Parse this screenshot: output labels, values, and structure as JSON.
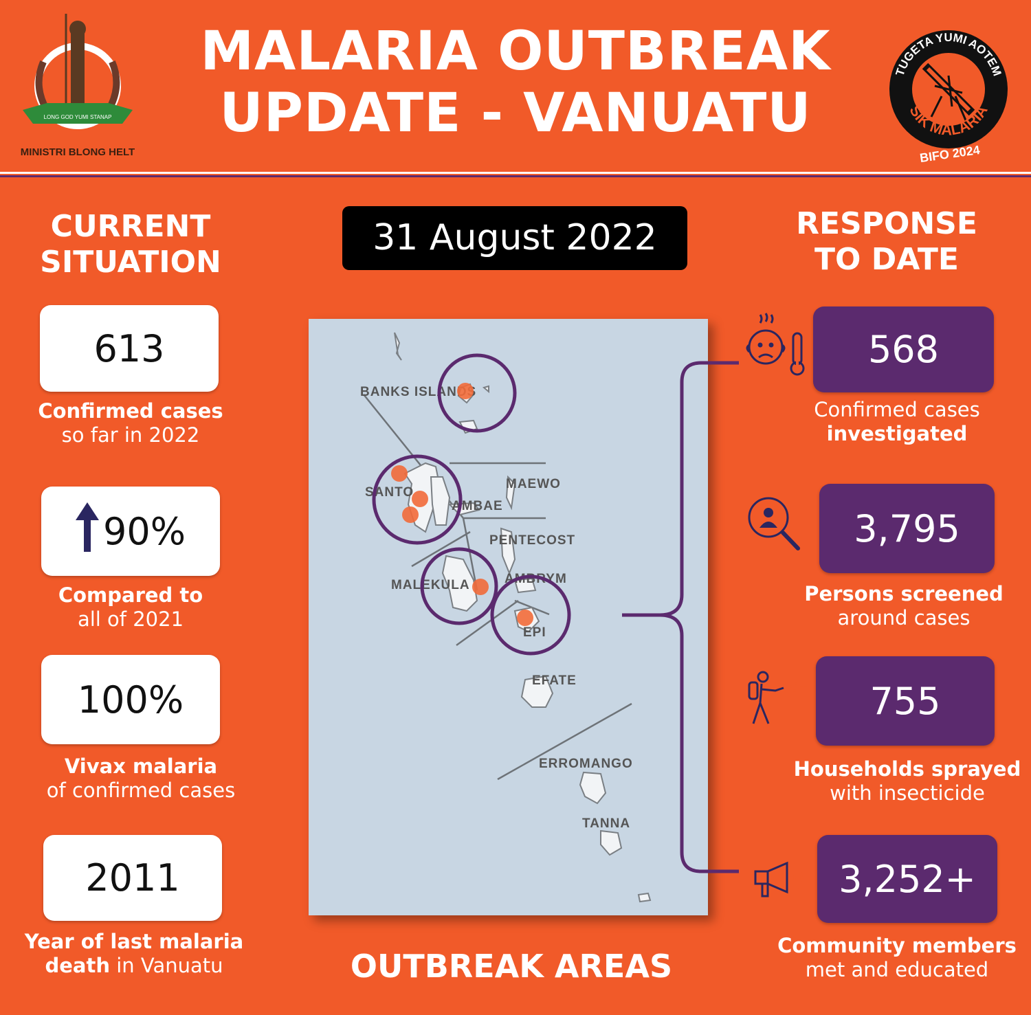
{
  "header": {
    "title_line1": "MALARIA OUTBREAK",
    "title_line2": "UPDATE - VANUATU",
    "left_logo": {
      "motto": "LONG GOD YUMI STANAP",
      "org": "MINISTRI BLONG HELT"
    },
    "right_logo": {
      "top_text": "TUGETA YUMI AOTEM",
      "bottom_text": "SIK MALARIA",
      "year_text": "BIFO 2024"
    }
  },
  "date": "31 August 2022",
  "current_situation": {
    "heading_line1": "CURRENT",
    "heading_line2": "SITUATION",
    "stats": [
      {
        "value": "613",
        "bold": "Confirmed cases",
        "rest": "so far in 2022"
      },
      {
        "value": "90%",
        "bold": "Compared to",
        "rest": "all of 2021",
        "icon": "up-arrow-icon"
      },
      {
        "value": "100%",
        "bold": "Vivax malaria",
        "rest": "of confirmed cases"
      },
      {
        "value": "2011",
        "bold": "Year of last malaria",
        "bold2": "death",
        "rest": "in Vanuatu"
      }
    ]
  },
  "response": {
    "heading_line1": "RESPONSE",
    "heading_line2": "TO DATE",
    "stats": [
      {
        "value": "568",
        "line1": "Confirmed cases",
        "line2": "investigated",
        "icon": "sick-person-thermometer-icon"
      },
      {
        "value": "3,795",
        "line1": "Persons screened",
        "line2": "around cases",
        "icon": "person-search-icon"
      },
      {
        "value": "755",
        "line1": "Households sprayed",
        "line2": "with insecticide",
        "icon": "sprayer-person-icon"
      },
      {
        "value": "3,252+",
        "line1": "Community members",
        "line2": "met and educated",
        "icon": "megaphone-icon"
      }
    ]
  },
  "map": {
    "caption": "OUTBREAK AREAS",
    "labels": [
      "BANKS ISLANDS",
      "SANTO",
      "MAEWO",
      "AMBAE",
      "PENTECOST",
      "MALEKULA",
      "AMBRYM",
      "EPI",
      "EFATE",
      "ERROMANGO",
      "TANNA"
    ],
    "colors": {
      "outbreak_dot": "#F26B3A",
      "outbreak_circle": "#5B2A6E",
      "sea": "#C8D6E3"
    }
  },
  "colors": {
    "background": "#F15A29",
    "purple": "#5B2A6E",
    "white": "#FFFFFF",
    "black": "#000000"
  }
}
